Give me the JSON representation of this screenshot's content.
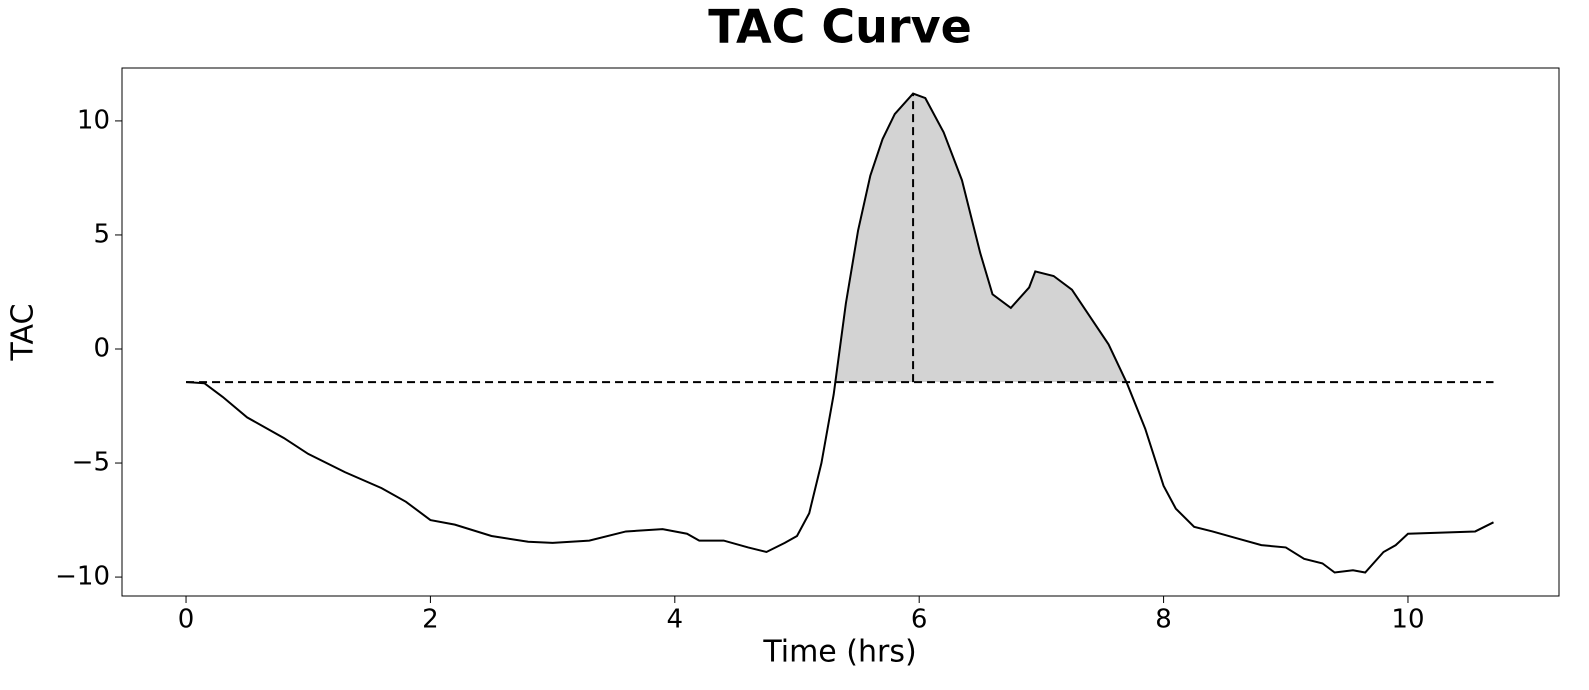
{
  "chart_data": {
    "type": "line",
    "title": "TAC Curve",
    "x_label": "Time (hrs)",
    "y_label": "TAC",
    "xlim": [
      -0.524,
      11.236
    ],
    "ylim": [
      -10.83,
      12.32
    ],
    "xticks": [
      0,
      2,
      4,
      6,
      8,
      10
    ],
    "yticks": [
      {
        "value": -10,
        "label": "−10"
      },
      {
        "value": -5,
        "label": "−5"
      },
      0,
      5,
      10
    ],
    "grid": false,
    "color": "#000000",
    "fill_color": "#d3d3d3",
    "baseline": -1.45,
    "peak_x": 5.95,
    "series": [
      {
        "color": "#000000",
        "x": [
          0,
          0.15,
          0.3,
          0.5,
          0.8,
          1.0,
          1.3,
          1.6,
          1.8,
          2.0,
          2.2,
          2.5,
          2.8,
          3.0,
          3.3,
          3.6,
          3.9,
          4.1,
          4.2,
          4.4,
          4.6,
          4.75,
          4.9,
          5.0,
          5.1,
          5.2,
          5.3,
          5.4,
          5.5,
          5.6,
          5.7,
          5.8,
          5.95,
          6.05,
          6.2,
          6.35,
          6.5,
          6.6,
          6.75,
          6.9,
          6.95,
          7.1,
          7.25,
          7.4,
          7.55,
          7.7,
          7.85,
          8.0,
          8.1,
          8.25,
          8.4,
          8.6,
          8.8,
          9.0,
          9.15,
          9.3,
          9.4,
          9.55,
          9.65,
          9.8,
          9.9,
          10.0,
          10.55,
          10.7
        ],
        "values": [
          -1.45,
          -1.5,
          -2.1,
          -3.0,
          -3.9,
          -4.6,
          -5.4,
          -6.1,
          -6.7,
          -7.5,
          -7.7,
          -8.2,
          -8.45,
          -8.5,
          -8.4,
          -8.0,
          -7.9,
          -8.1,
          -8.4,
          -8.4,
          -8.7,
          -8.9,
          -8.5,
          -8.2,
          -7.2,
          -5.0,
          -2.0,
          2.0,
          5.2,
          7.6,
          9.2,
          10.3,
          11.2,
          11.0,
          9.5,
          7.4,
          4.2,
          2.4,
          1.8,
          2.7,
          3.4,
          3.2,
          2.6,
          1.4,
          0.2,
          -1.5,
          -3.5,
          -6.0,
          -7.0,
          -7.8,
          -8.0,
          -8.3,
          -8.6,
          -8.7,
          -9.2,
          -9.4,
          -9.8,
          -9.7,
          -9.8,
          -8.9,
          -8.6,
          -8.1,
          -8.0,
          -7.6
        ]
      }
    ]
  }
}
